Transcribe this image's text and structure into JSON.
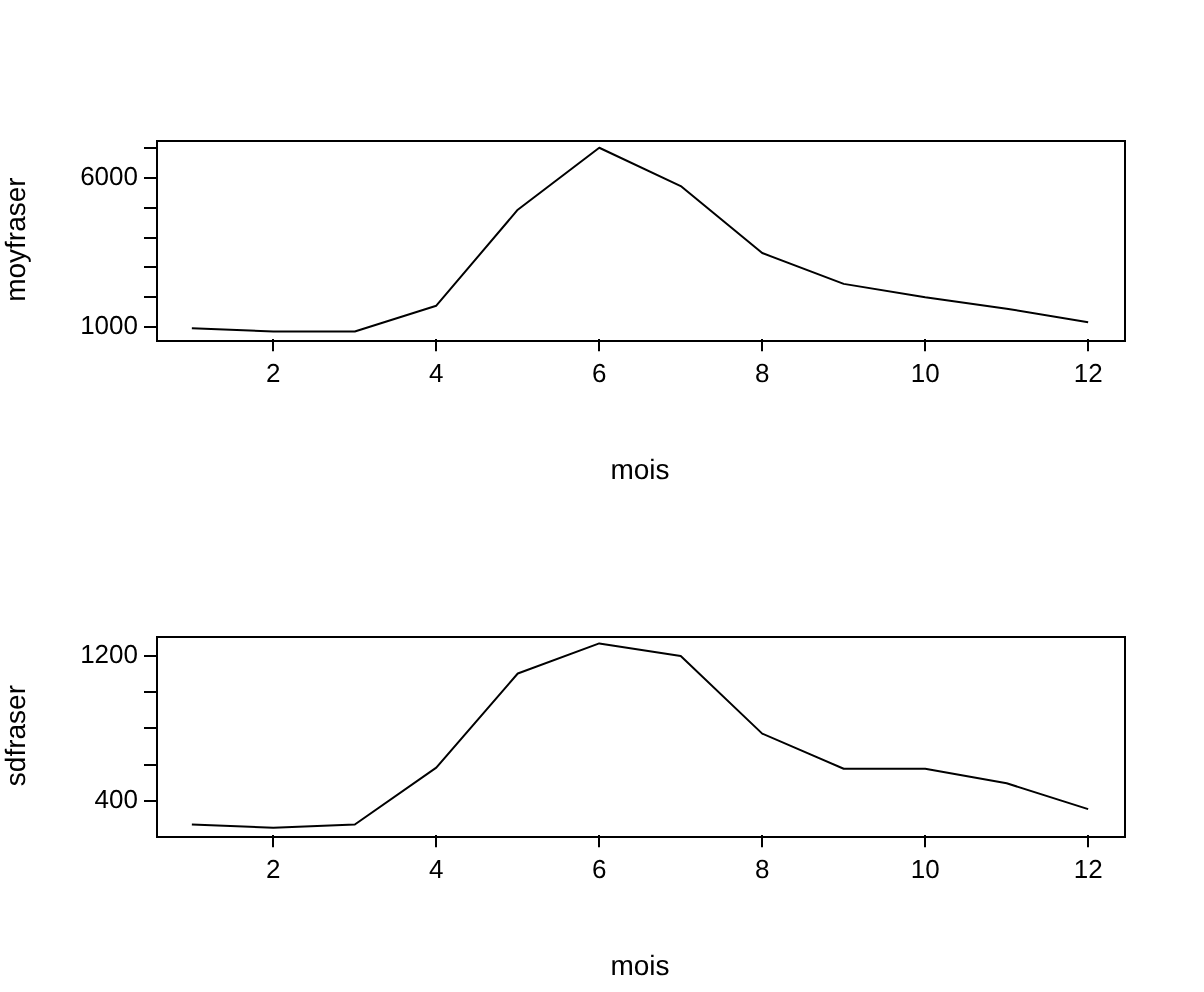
{
  "chart_data": [
    {
      "type": "line",
      "xlabel": "mois",
      "ylabel": "moyfraser",
      "x": [
        1,
        2,
        3,
        4,
        5,
        6,
        7,
        8,
        9,
        10,
        11,
        12
      ],
      "series": [
        {
          "color": "#000000",
          "values": [
            970,
            860,
            860,
            1720,
            4930,
            7000,
            5720,
            3480,
            2450,
            2000,
            1620,
            1170
          ]
        }
      ],
      "xlim": [
        0.56,
        12.44
      ],
      "xticks": [
        2,
        4,
        6,
        8,
        10,
        12
      ],
      "ylim": [
        600,
        7260
      ],
      "yticks": [
        1000,
        {
          "value": 2000,
          "label": null
        },
        {
          "value": 3000,
          "label": null
        },
        {
          "value": 4000,
          "label": null
        },
        {
          "value": 5000,
          "label": null
        },
        6000,
        {
          "value": 7000,
          "label": null
        }
      ],
      "grid": false,
      "legend": false,
      "marker": "none",
      "line_style": "solid"
    },
    {
      "type": "line",
      "xlabel": "mois",
      "ylabel": "sdfraser",
      "x": [
        1,
        2,
        3,
        4,
        5,
        6,
        7,
        8,
        9,
        10,
        11,
        12
      ],
      "series": [
        {
          "color": "#000000",
          "values": [
            269,
            251,
            269,
            583,
            1103,
            1269,
            1200,
            771,
            577,
            577,
            497,
            354
          ]
        }
      ],
      "xlim": [
        0.56,
        12.44
      ],
      "xticks": [
        2,
        4,
        6,
        8,
        10,
        12
      ],
      "ylim": [
        210,
        1310
      ],
      "yticks": [
        400,
        {
          "value": 600,
          "label": null
        },
        {
          "value": 800,
          "label": null
        },
        {
          "value": 1000,
          "label": null
        },
        1200
      ],
      "grid": false,
      "legend": false,
      "marker": "none",
      "line_style": "solid"
    }
  ]
}
